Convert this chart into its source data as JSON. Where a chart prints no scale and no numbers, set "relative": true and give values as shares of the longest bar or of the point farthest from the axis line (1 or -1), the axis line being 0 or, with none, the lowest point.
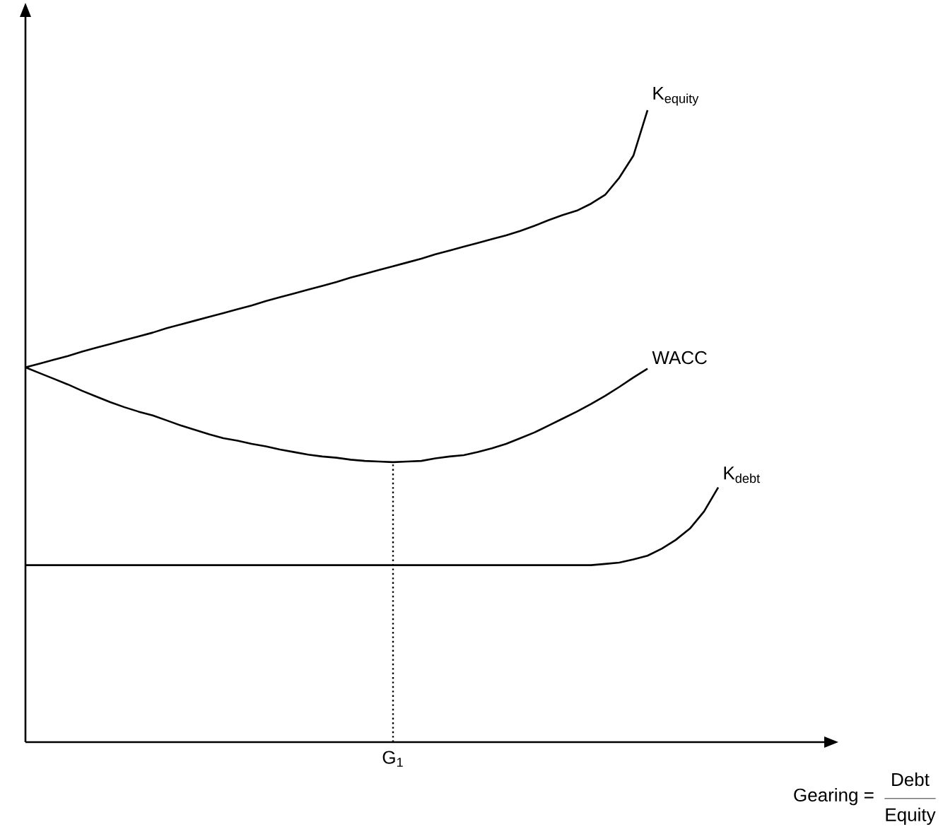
{
  "chart_data": {
    "type": "line",
    "relative": true,
    "xlabel": "Gearing =",
    "annotations": [
      "Debt",
      "Equity"
    ],
    "categories": [
      null,
      null,
      null,
      null,
      null,
      null,
      null,
      null,
      null,
      null,
      null,
      null,
      null,
      null,
      null,
      null,
      null,
      null,
      null,
      null,
      null,
      null,
      null,
      null,
      null,
      null,
      null,
      null,
      null,
      null,
      null,
      null,
      null,
      null,
      null,
      null,
      null,
      null,
      null,
      null,
      null,
      null,
      null,
      null,
      null,
      null,
      null,
      null,
      null,
      null
    ],
    "series": [
      {
        "name": "K$_{equity}$",
        "color": "#000000",
        "values": [
          0.593,
          0.599,
          0.605,
          0.611,
          0.618,
          0.624,
          0.63,
          0.636,
          0.642,
          0.648,
          0.655,
          0.661,
          0.667,
          0.673,
          0.679,
          0.685,
          0.691,
          0.698,
          0.704,
          0.71,
          0.716,
          0.722,
          0.728,
          0.735,
          0.741,
          0.747,
          0.753,
          0.759,
          0.765,
          0.772,
          0.778,
          0.784,
          0.79,
          0.796,
          0.802,
          0.809,
          0.817,
          0.826,
          0.834,
          0.841,
          0.852,
          0.866,
          0.893,
          0.928,
          1,
          null,
          null,
          null,
          null,
          null
        ]
      },
      {
        "name": "WACC",
        "color": "#000000",
        "values": [
          0.593,
          0.584,
          0.575,
          0.566,
          0.556,
          0.547,
          0.538,
          0.53,
          0.523,
          0.517,
          0.509,
          0.501,
          0.494,
          0.487,
          0.481,
          0.477,
          0.472,
          0.468,
          0.463,
          0.459,
          0.455,
          0.452,
          0.45,
          0.447,
          0.445,
          0.444,
          0.443,
          0.444,
          0.445,
          0.449,
          0.452,
          0.454,
          0.459,
          0.465,
          0.472,
          0.481,
          0.49,
          0.501,
          0.512,
          0.523,
          0.535,
          0.548,
          0.562,
          0.577,
          0.591,
          null,
          null,
          null,
          null,
          null
        ]
      },
      {
        "name": "K$_{debt}$",
        "color": "#000000",
        "values": [
          0.28,
          0.28,
          0.28,
          0.28,
          0.28,
          0.28,
          0.28,
          0.28,
          0.28,
          0.28,
          0.28,
          0.28,
          0.28,
          0.28,
          0.28,
          0.28,
          0.28,
          0.28,
          0.28,
          0.28,
          0.28,
          0.28,
          0.28,
          0.28,
          0.28,
          0.28,
          0.28,
          0.28,
          0.28,
          0.28,
          0.28,
          0.28,
          0.28,
          0.28,
          0.28,
          0.28,
          0.28,
          0.28,
          0.28,
          0.28,
          0.28,
          0.282,
          0.284,
          0.289,
          0.295,
          0.306,
          0.32,
          0.338,
          0.365,
          0.403
        ]
      }
    ],
    "ref_lines": [
      {
        "axis": "x",
        "value": "G$_{1}$",
        "line_style": "dotted"
      }
    ]
  }
}
